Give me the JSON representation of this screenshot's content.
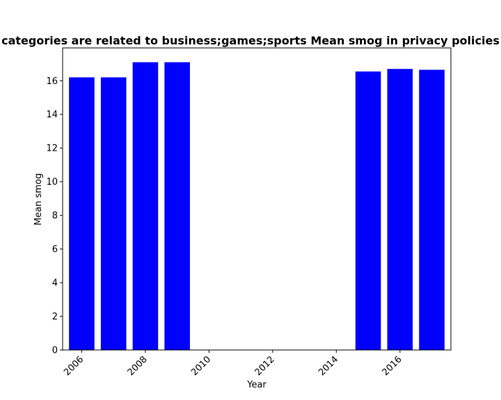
{
  "chart_data": {
    "type": "bar",
    "title": "categories are related to business;games;sports Mean smog in privacy policies",
    "xlabel": "Year",
    "ylabel": "Mean smog",
    "x": [
      2006,
      2007,
      2008,
      2009,
      2015,
      2016,
      2017
    ],
    "values": [
      16.2,
      16.2,
      17.1,
      17.1,
      16.55,
      16.7,
      16.65
    ],
    "xlim": [
      2005.4,
      2017.6
    ],
    "ylim": [
      0,
      17.95
    ],
    "xticks": [
      2006,
      2008,
      2010,
      2012,
      2014,
      2016
    ],
    "yticks": [
      0,
      2,
      4,
      6,
      8,
      10,
      12,
      14,
      16
    ],
    "bar_color": "#0000ff",
    "grid": false,
    "legend": false
  }
}
